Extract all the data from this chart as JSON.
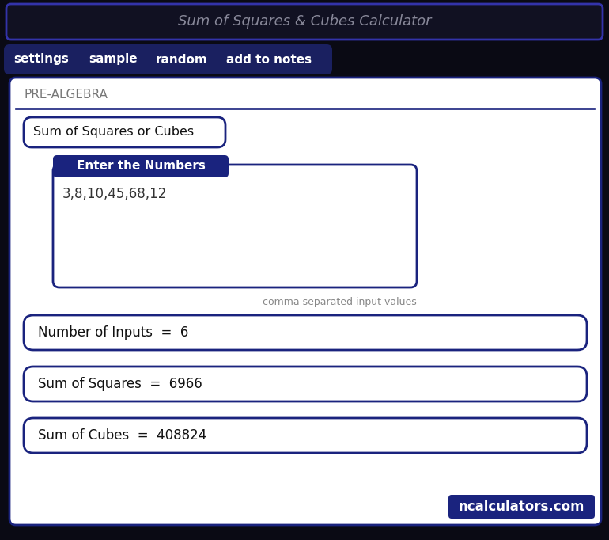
{
  "bg_color": "#0a0a14",
  "title_bar_text": "Sum of Squares & Cubes Calculator",
  "title_bar_bg": "#111122",
  "title_bar_border": "#3333aa",
  "tab_bar_bg": "#1a2060",
  "tabs": [
    "settings",
    "sample",
    "random",
    "add to notes"
  ],
  "tab_text_color": "#ffffff",
  "main_bg": "#ffffff",
  "main_border": "#1a237e",
  "pre_algebra_label": "PRE-ALGEBRA",
  "pre_algebra_color": "#777777",
  "dropdown_text": "Sum of Squares or Cubes",
  "dropdown_border": "#1a237e",
  "input_label": "Enter the Numbers",
  "input_label_bg": "#1a237e",
  "input_label_text_color": "#ffffff",
  "input_value": "3,8,10,45,68,12",
  "input_border": "#1a237e",
  "hint_text": "comma separated input values",
  "hint_color": "#888888",
  "result1_text": "Number of Inputs  =  6",
  "result2_text": "Sum of Squares  =  6966",
  "result3_text": "Sum of Cubes  =  408824",
  "result_border": "#1a237e",
  "result_text_color": "#111111",
  "footer_text": "ncalculators.com",
  "footer_bg": "#1a237e",
  "footer_text_color": "#ffffff",
  "fig_w": 7.7,
  "fig_h": 6.82,
  "dpi": 100
}
